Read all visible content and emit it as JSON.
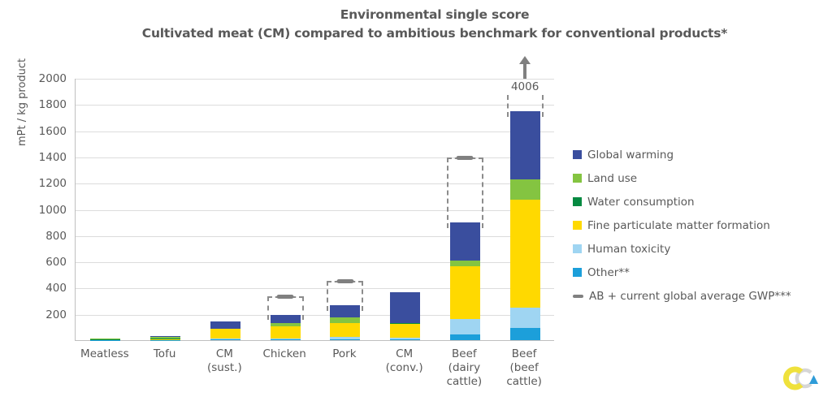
{
  "title": {
    "line1": "Environmental single score",
    "line2": "Cultivated meat (CM) compared to ambitious benchmark for conventional products*"
  },
  "colors": {
    "text": "#595959",
    "gridline": "#DCDCDC",
    "axis": "#BFBFBF",
    "benchmark": "#808080",
    "logo_yellow": "#EFE13C",
    "logo_gray": "#D6D6D6",
    "logo_blue": "#2F9CD8"
  },
  "chart_data": {
    "type": "bar",
    "subtype": "stacked-bar-with-benchmark",
    "title": "Environmental single score — Cultivated meat (CM) compared to ambitious benchmark for conventional products*",
    "xlabel": "",
    "ylabel": "mPt / kg product",
    "ylim": [
      0,
      2000
    ],
    "yticks": [
      200,
      400,
      600,
      800,
      1000,
      1200,
      1400,
      1600,
      1800,
      2000
    ],
    "grid": "horizontal",
    "legend_position": "right",
    "stack_order": [
      "other",
      "human_toxicity",
      "fine_particulate_matter_formation",
      "water_consumption",
      "land_use",
      "global_warming"
    ],
    "series_colors": {
      "global_warming": "#3A4E9E",
      "land_use": "#84C441",
      "water_consumption": "#068A41",
      "fine_particulate_matter_formation": "#FFD900",
      "human_toxicity": "#9FD5F2",
      "other": "#1C9FDA"
    },
    "categories": [
      "Meatless",
      "Tofu",
      "CM (sust.)",
      "Chicken",
      "Pork",
      "CM (conv.)",
      "Beef (dairy cattle)",
      "Beef (beef cattle)"
    ],
    "category_label_lines": [
      [
        "Meatless"
      ],
      [
        "Tofu"
      ],
      [
        "CM",
        "(sust.)"
      ],
      [
        "Chicken"
      ],
      [
        "Pork"
      ],
      [
        "CM",
        "(conv.)"
      ],
      [
        "Beef",
        "(dairy",
        "cattle)"
      ],
      [
        "Beef",
        "(beef",
        "cattle)"
      ]
    ],
    "bars": [
      {
        "category": "Meatless",
        "total": 14,
        "benchmark": null,
        "segments": {
          "other": 1,
          "human_toxicity": 1,
          "fine_particulate_matter_formation": 1,
          "water_consumption": 4,
          "land_use": 5,
          "global_warming": 2
        }
      },
      {
        "category": "Tofu",
        "total": 30,
        "benchmark": null,
        "segments": {
          "other": 1,
          "human_toxicity": 1,
          "fine_particulate_matter_formation": 2,
          "water_consumption": 6,
          "land_use": 16,
          "global_warming": 4
        }
      },
      {
        "category": "CM (sust.)",
        "total": 142,
        "benchmark": null,
        "segments": {
          "other": 6,
          "human_toxicity": 8,
          "fine_particulate_matter_formation": 72,
          "water_consumption": 0,
          "land_use": 0,
          "global_warming": 56
        }
      },
      {
        "category": "Chicken",
        "total": 195,
        "benchmark": 340,
        "segments": {
          "other": 5,
          "human_toxicity": 8,
          "fine_particulate_matter_formation": 95,
          "water_consumption": 0,
          "land_use": 25,
          "global_warming": 62
        }
      },
      {
        "category": "Pork",
        "total": 264,
        "benchmark": 460,
        "segments": {
          "other": 8,
          "human_toxicity": 20,
          "fine_particulate_matter_formation": 105,
          "water_consumption": 0,
          "land_use": 38,
          "global_warming": 93
        }
      },
      {
        "category": "CM (conv.)",
        "total": 368,
        "benchmark": null,
        "segments": {
          "other": 6,
          "human_toxicity": 10,
          "fine_particulate_matter_formation": 106,
          "water_consumption": 10,
          "land_use": 0,
          "global_warming": 236
        }
      },
      {
        "category": "Beef (dairy cattle)",
        "total": 900,
        "benchmark": 1400,
        "segments": {
          "other": 43,
          "human_toxicity": 118,
          "fine_particulate_matter_formation": 402,
          "water_consumption": 0,
          "land_use": 44,
          "global_warming": 293
        }
      },
      {
        "category": "Beef (beef cattle)",
        "total": 1745,
        "benchmark": 4006,
        "benchmark_off_scale": true,
        "benchmark_label": "4006",
        "segments": {
          "other": 90,
          "human_toxicity": 155,
          "fine_particulate_matter_formation": 825,
          "water_consumption": 0,
          "land_use": 155,
          "global_warming": 520
        }
      }
    ]
  },
  "legend": {
    "items": [
      {
        "label": "Global warming",
        "color": "#3A4E9E",
        "swatch": "square"
      },
      {
        "label": "Land use",
        "color": "#84C441",
        "swatch": "square"
      },
      {
        "label": "Water consumption",
        "color": "#068A41",
        "swatch": "square"
      },
      {
        "label": "Fine particulate matter formation",
        "color": "#FFD900",
        "swatch": "square"
      },
      {
        "label": "Human toxicity",
        "color": "#9FD5F2",
        "swatch": "square"
      },
      {
        "label": "Other**",
        "color": "#1C9FDA",
        "swatch": "square"
      },
      {
        "label": "AB + current global average GWP***",
        "color": "#808080",
        "swatch": "dash"
      }
    ]
  }
}
